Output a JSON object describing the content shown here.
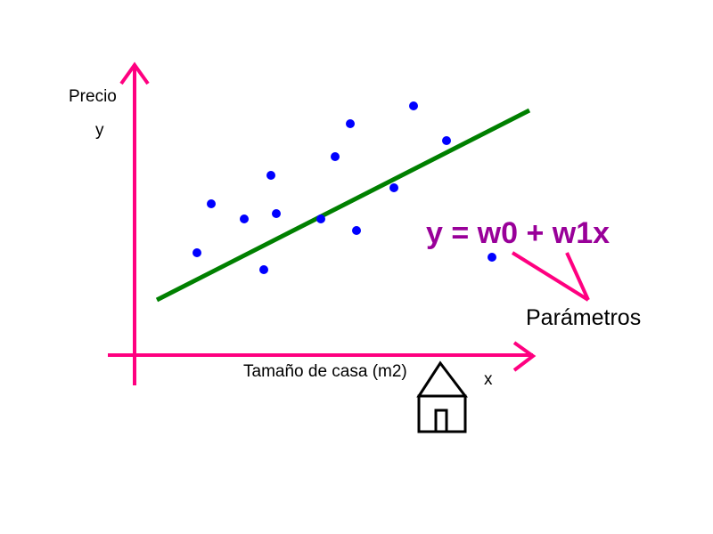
{
  "labels": {
    "y_axis_title": "Precio",
    "y_symbol": "y",
    "x_axis_title": "Tamaño de casa (m2)",
    "x_symbol": "x",
    "formula": "y = w0 + w1x",
    "params": "Parámetros"
  },
  "colors": {
    "axis": "#ff0080",
    "regression_line": "#008000",
    "points": "#0000ff",
    "formula": "#990099",
    "pointer": "#ff0080",
    "house": "#000000"
  },
  "icons": {
    "house": "house-icon"
  },
  "chart_data": {
    "type": "scatter",
    "series": [
      {
        "values": [
          [
            70,
            11.5
          ],
          [
            86,
            17
          ],
          [
            123,
            15.3
          ],
          [
            145,
            9.6
          ],
          [
            153,
            20.2
          ],
          [
            159,
            15.9
          ],
          [
            209,
            15.3
          ],
          [
            225,
            22.3
          ],
          [
            242,
            26
          ],
          [
            249,
            14
          ],
          [
            291,
            18.8
          ],
          [
            313,
            28
          ],
          [
            350,
            24.1
          ],
          [
            401,
            11.0
          ]
        ]
      }
    ],
    "fit_line": {
      "x": [
        25,
        443
      ],
      "y": [
        6.2,
        27.5
      ]
    },
    "xlim": [
      -30,
      450
    ],
    "ylim": [
      -3,
      33
    ]
  }
}
